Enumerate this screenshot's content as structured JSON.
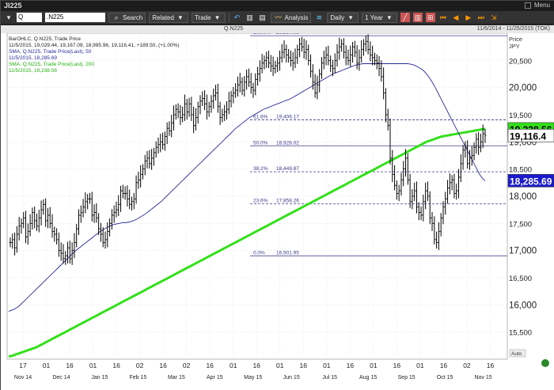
{
  "titlebar": {
    "title": "JI225",
    "menu_label": "Menu"
  },
  "toolbar": {
    "symbol_value": "Q",
    "symbol_field_value": ".N225",
    "search_label": "Search",
    "related_label": "Related",
    "trade_label": "Trade",
    "analysis_label": "Analysis",
    "daily_label": "Daily",
    "period_label": "1 Year"
  },
  "subheader": {
    "symbol": "Q.N225",
    "date_range": "11/6/2014 - 11/25/2015 (TOK)"
  },
  "legend": {
    "line1": "BarOHLC, Q.N225, Trade Price",
    "line2": "11/5/2015, 19,029.44, 19,167.09, 18,995.96, 19,116.41, +189.50, (+1.00%)",
    "line3": "SMA, Q.N225, Trade Price(Last), 50",
    "line4": "11/5/2015, 18,285.69",
    "line5": "SMA, Q.N225, Trade Price(Last), 200",
    "line6": "11/5/2015, 19,238.56"
  },
  "colors": {
    "price_bars": "#000000",
    "sma50": "#2a2a9a",
    "sma200": "#33e01a",
    "fib_lines": "#3a3a8a",
    "badge_price": "#ffffff",
    "badge_sma200": "#33e01a",
    "badge_sma50": "#1a1acc"
  },
  "axis": {
    "price_label": "Price",
    "currency_label": "JPY",
    "auto_label": "Auto"
  },
  "chart_data": {
    "type": "bar",
    "ylim": [
      15000,
      21000
    ],
    "y_ticks": [
      {
        "value": 15500,
        "label": "15,500"
      },
      {
        "value": 16000,
        "label": "16,000"
      },
      {
        "value": 16500,
        "label": "16,500"
      },
      {
        "value": 17000,
        "label": "17,000"
      },
      {
        "value": 17500,
        "label": "17,500"
      },
      {
        "value": 18000,
        "label": "18,000"
      },
      {
        "value": 18500,
        "label": "18,500"
      },
      {
        "value": 19000,
        "label": "19,000"
      },
      {
        "value": 19500,
        "label": "19,500"
      },
      {
        "value": 20000,
        "label": "20,000"
      },
      {
        "value": 20500,
        "label": "20,500"
      }
    ],
    "major_ticks": [
      19000,
      20000,
      18000,
      17000,
      16000
    ],
    "x_day_labels": [
      "17",
      "01",
      "16",
      "01",
      "16",
      "02",
      "16",
      "02",
      "16",
      "01",
      "16",
      "01",
      "16",
      "01",
      "16",
      "01",
      "16",
      "01",
      "16",
      "02",
      "16"
    ],
    "x_month_labels": [
      "Nov 14",
      "Dec 14",
      "Jan 15",
      "Feb 15",
      "Mar 15",
      "Apr 15",
      "May 15",
      "Jun 15",
      "Jul 15",
      "Aug 15",
      "Sep 15",
      "Oct 15",
      "Nov 15"
    ],
    "fibonacci": [
      {
        "label": "100.0%",
        "value": 20954.09,
        "value_label": "20,954.09"
      },
      {
        "label": "61.8%",
        "value": 19406.17,
        "value_label": "19,406.17"
      },
      {
        "label": "50.0%",
        "value": 18928.02,
        "value_label": "18,928.02"
      },
      {
        "label": "38.2%",
        "value": 18449.87,
        "value_label": "18,449.87"
      },
      {
        "label": "23.6%",
        "value": 17858.26,
        "value_label": "17,858.26"
      },
      {
        "label": "0.0%",
        "value": 16901.95,
        "value_label": "16,901.95"
      }
    ],
    "badges": [
      {
        "name": "sma200",
        "value": 19238.56,
        "label": "19,238.56"
      },
      {
        "name": "last-price",
        "value": 19116.41,
        "label": "19,116.4"
      },
      {
        "name": "sma50",
        "value": 18285.69,
        "label": "18,285.69"
      }
    ],
    "closes": [
      17150,
      17200,
      17050,
      17300,
      17450,
      17500,
      17600,
      17250,
      17350,
      17500,
      17700,
      17550,
      17450,
      17600,
      17750,
      17850,
      17550,
      17650,
      17500,
      17350,
      17300,
      17200,
      17000,
      16950,
      16850,
      16900,
      17050,
      16850,
      17000,
      17150,
      17400,
      17650,
      17700,
      17800,
      17900,
      17950,
      17950,
      17650,
      17700,
      17600,
      17400,
      17300,
      17150,
      17200,
      17350,
      17500,
      17650,
      17700,
      17750,
      17850,
      18100,
      18050,
      18050,
      17950,
      17850,
      17900,
      17950,
      18250,
      18300,
      18400,
      18500,
      18650,
      18700,
      18600,
      18700,
      18800,
      18900,
      18950,
      19000,
      18950,
      19100,
      19250,
      19200,
      19350,
      19500,
      19600,
      19550,
      19450,
      19500,
      19700,
      19550,
      19700,
      19500,
      19300,
      19450,
      19650,
      19750,
      19800,
      19700,
      19550,
      19650,
      19750,
      19850,
      19900,
      19650,
      19450,
      19500,
      19550,
      19600,
      19750,
      19850,
      19900,
      19950,
      20050,
      20100,
      19950,
      20100,
      20200,
      20100,
      20000,
      19950,
      20150,
      20250,
      20350,
      20450,
      20500,
      20550,
      20450,
      20400,
      20350,
      20400,
      20450,
      20550,
      20650,
      20700,
      20600,
      20550,
      20500,
      20450,
      20550,
      20700,
      20800,
      20750,
      20650,
      20700,
      20500,
      20300,
      20100,
      19900,
      20050,
      20250,
      20450,
      20550,
      20600,
      20500,
      20400,
      20350,
      20500,
      20650,
      20750,
      20800,
      20650,
      20550,
      20500,
      20600,
      20750,
      20650,
      20450,
      20550,
      20700,
      20800,
      20850,
      20700,
      20600,
      20550,
      20500,
      20450,
      20350,
      20200,
      19900,
      19500,
      19300,
      18700,
      18400,
      18200,
      18050,
      18100,
      18300,
      18500,
      18700,
      18300,
      17900,
      18000,
      18100,
      17800,
      17700,
      17650,
      17900,
      18100,
      18000,
      17600,
      17500,
      17200,
      17150,
      17350,
      17600,
      17800,
      17950,
      18150,
      18250,
      18300,
      18050,
      18100,
      18350,
      18600,
      18850,
      18900,
      18600,
      18700,
      18750,
      18900,
      19050,
      18900,
      19000,
      19150,
      19120
    ],
    "sma50": [
      15880,
      15900,
      15920,
      15950,
      15990,
      16040,
      16090,
      16140,
      16190,
      16240,
      16290,
      16340,
      16390,
      16440,
      16490,
      16540,
      16590,
      16640,
      16690,
      16740,
      16790,
      16840,
      16890,
      16940,
      16990,
      17030,
      17070,
      17110,
      17150,
      17190,
      17230,
      17270,
      17310,
      17350,
      17380,
      17410,
      17440,
      17460,
      17480,
      17490,
      17500,
      17510,
      17510,
      17520,
      17530,
      17550,
      17570,
      17600,
      17630,
      17660,
      17700,
      17740,
      17780,
      17820,
      17860,
      17900,
      17950,
      18000,
      18050,
      18100,
      18150,
      18200,
      18250,
      18300,
      18350,
      18400,
      18450,
      18500,
      18550,
      18600,
      18650,
      18700,
      18750,
      18800,
      18850,
      18900,
      18950,
      19000,
      19050,
      19100,
      19150,
      19200,
      19250,
      19290,
      19330,
      19370,
      19410,
      19450,
      19480,
      19510,
      19540,
      19570,
      19600,
      19620,
      19640,
      19660,
      19680,
      19700,
      19720,
      19740,
      19760,
      19780,
      19800,
      19830,
      19860,
      19890,
      19920,
      19950,
      19980,
      20010,
      20040,
      20070,
      20100,
      20130,
      20160,
      20190,
      20220,
      20250,
      20270,
      20290,
      20310,
      20330,
      20350,
      20370,
      20390,
      20410,
      20420,
      20430,
      20440,
      20440,
      20440,
      20440,
      20440,
      20440,
      20440,
      20440,
      20440,
      20440,
      20440,
      20440,
      20440,
      20440,
      20440,
      20440,
      20440,
      20430,
      20420,
      20400,
      20370,
      20340,
      20300,
      20240,
      20170,
      20090,
      20000,
      19900,
      19800,
      19700,
      19600,
      19500,
      19400,
      19300,
      19200,
      19100,
      19000,
      18900,
      18800,
      18700,
      18600,
      18500,
      18400,
      18330,
      18285
    ],
    "sma200": [
      15050,
      15060,
      15080,
      15100,
      15120,
      15140,
      15160,
      15180,
      15200,
      15220,
      15250,
      15280,
      15310,
      15340,
      15370,
      15400,
      15430,
      15460,
      15490,
      15520,
      15550,
      15580,
      15610,
      15640,
      15670,
      15700,
      15730,
      15760,
      15790,
      15820,
      15850,
      15880,
      15910,
      15940,
      15970,
      16000,
      16030,
      16060,
      16090,
      16120,
      16150,
      16180,
      16210,
      16240,
      16270,
      16300,
      16330,
      16360,
      16390,
      16420,
      16450,
      16480,
      16510,
      16540,
      16570,
      16600,
      16630,
      16660,
      16690,
      16720,
      16750,
      16780,
      16810,
      16840,
      16870,
      16900,
      16930,
      16960,
      16990,
      17020,
      17050,
      17080,
      17110,
      17140,
      17170,
      17200,
      17230,
      17260,
      17290,
      17320,
      17350,
      17380,
      17410,
      17440,
      17470,
      17500,
      17530,
      17560,
      17590,
      17620,
      17650,
      17680,
      17710,
      17740,
      17770,
      17800,
      17830,
      17860,
      17890,
      17920,
      17950,
      17980,
      18010,
      18040,
      18070,
      18100,
      18130,
      18160,
      18190,
      18220,
      18250,
      18280,
      18310,
      18340,
      18370,
      18400,
      18430,
      18460,
      18490,
      18520,
      18550,
      18580,
      18610,
      18640,
      18670,
      18700,
      18730,
      18760,
      18790,
      18820,
      18850,
      18880,
      18910,
      18940,
      18970,
      19000,
      19020,
      19040,
      19060,
      19080,
      19100,
      19110,
      19120,
      19130,
      19140,
      19150,
      19160,
      19170,
      19180,
      19190,
      19200,
      19210,
      19220,
      19230,
      19238
    ]
  }
}
